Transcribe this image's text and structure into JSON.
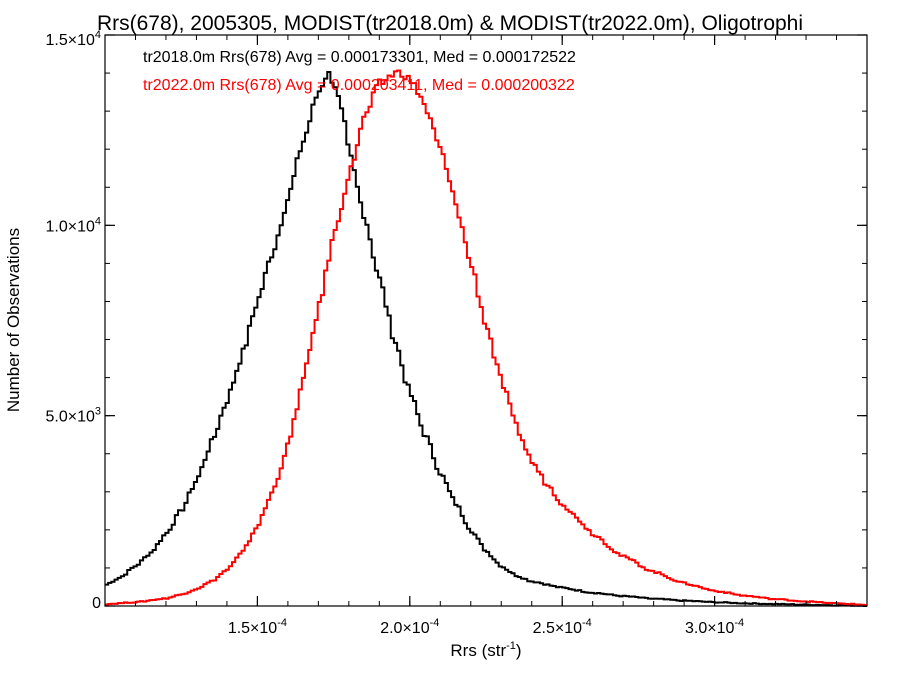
{
  "chart_data": {
    "type": "line",
    "step": true,
    "title": "Rrs(678), 2005305, MODIST(tr2018.0m) & MODIST(tr2022.0m), Oligotrophi",
    "xlabel": "Rrs (str",
    "xlabel_sup": "-1",
    "xlabel_end": ")",
    "ylabel": "Number of Observations",
    "xlim": [
      0.0001,
      0.00035
    ],
    "ylim": [
      0,
      15000
    ],
    "grid": false,
    "x_ticks": [
      {
        "value": 0.00015,
        "mantissa": "1.5×10",
        "exp": "-4"
      },
      {
        "value": 0.0002,
        "mantissa": "2.0×10",
        "exp": "-4"
      },
      {
        "value": 0.00025,
        "mantissa": "2.5×10",
        "exp": "-4"
      },
      {
        "value": 0.0003,
        "mantissa": "3.0×10",
        "exp": "-4"
      }
    ],
    "y_ticks": [
      {
        "value": 0,
        "mantissa": "0",
        "exp": ""
      },
      {
        "value": 5000,
        "mantissa": "5.0×10",
        "exp": "3"
      },
      {
        "value": 10000,
        "mantissa": "1.0×10",
        "exp": "4"
      },
      {
        "value": 15000,
        "mantissa": "1.5×10",
        "exp": "4"
      }
    ],
    "legend_placement": "top-left",
    "series": [
      {
        "name": "tr2018.0m Rrs(678) Avg = 0.000173301, Med = 0.000172522",
        "color": "#000000",
        "x": [
          0.0001,
          0.000105,
          0.00011,
          0.000115,
          0.00012,
          0.000125,
          0.00013,
          0.000135,
          0.00014,
          0.000145,
          0.00015,
          0.000155,
          0.00016,
          0.000165,
          0.00017,
          0.000173,
          0.000175,
          0.000178,
          0.00018,
          0.000185,
          0.00019,
          0.000195,
          0.0002,
          0.000205,
          0.00021,
          0.000215,
          0.00022,
          0.000225,
          0.00023,
          0.000235,
          0.00024,
          0.00025,
          0.00026,
          0.00027,
          0.00028,
          0.00029,
          0.0003,
          0.00031,
          0.00032,
          0.00033,
          0.00034,
          0.00035
        ],
        "y": [
          550,
          750,
          1050,
          1400,
          1900,
          2500,
          3300,
          4300,
          5400,
          6600,
          8000,
          9300,
          10700,
          12200,
          13500,
          14000,
          13800,
          12900,
          11900,
          10300,
          8600,
          7000,
          5600,
          4500,
          3500,
          2700,
          2000,
          1450,
          1050,
          800,
          650,
          480,
          350,
          260,
          190,
          140,
          100,
          70,
          50,
          35,
          20,
          10
        ]
      },
      {
        "name": "tr2022.0m Rrs(678) Avg = 0.000203411, Med = 0.000200322",
        "color": "#ff0000",
        "x": [
          0.0001,
          0.00011,
          0.00012,
          0.000125,
          0.00013,
          0.000135,
          0.00014,
          0.000145,
          0.00015,
          0.000155,
          0.00016,
          0.000165,
          0.00017,
          0.000175,
          0.00018,
          0.000185,
          0.00019,
          0.000195,
          0.000198,
          0.0002,
          0.000203,
          0.000205,
          0.00021,
          0.000215,
          0.00022,
          0.000225,
          0.00023,
          0.000235,
          0.00024,
          0.000245,
          0.00025,
          0.000255,
          0.00026,
          0.00027,
          0.00028,
          0.00029,
          0.0003,
          0.00031,
          0.00032,
          0.00033,
          0.00034,
          0.00035
        ],
        "y": [
          50,
          100,
          200,
          300,
          450,
          650,
          950,
          1400,
          2100,
          3000,
          4200,
          5900,
          7800,
          9700,
          11300,
          12800,
          13700,
          14000,
          14000,
          13800,
          13500,
          13100,
          12000,
          10600,
          9000,
          7400,
          5900,
          4700,
          3800,
          3200,
          2700,
          2300,
          1900,
          1300,
          900,
          600,
          400,
          270,
          180,
          120,
          70,
          30
        ]
      }
    ]
  }
}
